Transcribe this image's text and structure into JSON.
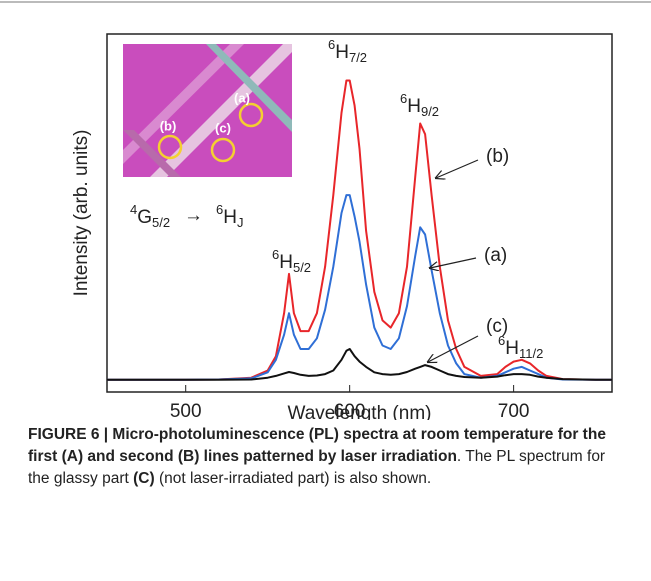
{
  "chart_data": {
    "type": "line",
    "x_label": "Wavelength (nm)",
    "y_label": "Intensity (arb. units)",
    "x": [
      450,
      500,
      520,
      540,
      550,
      555,
      560,
      563,
      566,
      570,
      575,
      580,
      585,
      590,
      595,
      598,
      600,
      603,
      606,
      610,
      615,
      620,
      625,
      630,
      635,
      640,
      643,
      646,
      650,
      655,
      660,
      665,
      670,
      680,
      690,
      695,
      700,
      705,
      710,
      715,
      720,
      730,
      750,
      760
    ],
    "series": [
      {
        "name": "(b)",
        "color": "#e8262a",
        "values": [
          3.4,
          3.4,
          3.5,
          4,
          6,
          10,
          22,
          33,
          22,
          17,
          17,
          22,
          35,
          55,
          78,
          87,
          87,
          80,
          68,
          45,
          28,
          20,
          18,
          22,
          35,
          60,
          75,
          72,
          55,
          35,
          20,
          12,
          7,
          4.5,
          5,
          7,
          8.5,
          9,
          8,
          6,
          4.5,
          3.6,
          3.4,
          3.4
        ]
      },
      {
        "name": "(a)",
        "color": "#2f6fd6",
        "values": [
          3.4,
          3.4,
          3.5,
          3.8,
          5.5,
          9,
          16,
          22,
          16,
          12,
          12,
          15,
          23,
          35,
          50,
          55,
          55,
          49,
          42,
          30,
          18,
          13,
          12,
          15,
          24,
          38,
          46,
          44,
          34,
          22,
          13,
          8,
          5,
          4,
          4.5,
          5.5,
          6.5,
          7,
          6,
          5,
          4,
          3.5,
          3.4,
          3.4
        ]
      },
      {
        "name": "(c)",
        "color": "#111111",
        "values": [
          3.4,
          3.4,
          3.4,
          3.5,
          4,
          4.5,
          5.2,
          5.6,
          5.3,
          4.8,
          4.5,
          4.6,
          5,
          6,
          9,
          11.5,
          12,
          10,
          8.5,
          7,
          5.5,
          5,
          4.8,
          5,
          5.6,
          6.5,
          7,
          7.5,
          7,
          6,
          5,
          4.5,
          4.2,
          4,
          4.3,
          4.7,
          5,
          5,
          4.8,
          4.3,
          4,
          3.6,
          3.4,
          3.4
        ]
      }
    ],
    "xlim": [
      452,
      760
    ],
    "xticks": [
      500,
      600,
      700
    ],
    "ylim": [
      0,
      100
    ],
    "peak_labels": [
      {
        "sup": "6",
        "base": "H",
        "sub": "5/2"
      },
      {
        "sup": "6",
        "base": "H",
        "sub": "7/2"
      },
      {
        "sup": "6",
        "base": "H",
        "sub": "9/2"
      },
      {
        "sup": "6",
        "base": "H",
        "sub": "11/2"
      }
    ],
    "transition": {
      "from": {
        "sup": "4",
        "base": "G",
        "sub": "5/2"
      },
      "arrow": "→",
      "to": {
        "sup": "6",
        "base": "H",
        "sub": "J"
      }
    },
    "inset_labels": [
      "(a)",
      "(b)",
      "(c)"
    ]
  },
  "caption": {
    "runs": [
      {
        "text": "FIGURE 6 | Micro-photoluminescence (PL) spectra at room temperature for the first (A) and second (B) lines patterned by laser irradiation",
        "bold": true
      },
      {
        "text": ". The PL spectrum for the glassy part ",
        "bold": false
      },
      {
        "text": "(C)",
        "bold": true
      },
      {
        "text": " (not laser-irradiated part) is also shown.",
        "bold": false
      }
    ]
  }
}
